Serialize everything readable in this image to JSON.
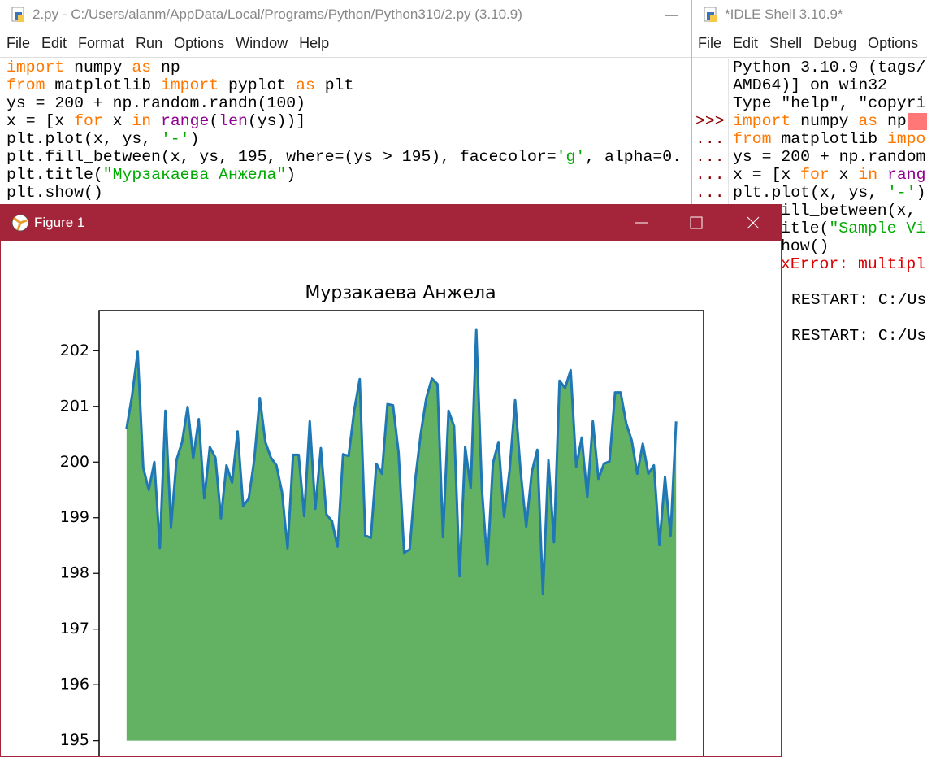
{
  "editor": {
    "title": "2.py - C:/Users/alanm/AppData/Local/Programs/Python/Python310/2.py (3.10.9)",
    "menu": [
      "File",
      "Edit",
      "Format",
      "Run",
      "Options",
      "Window",
      "Help"
    ],
    "code": [
      [
        {
          "text": "import",
          "kind": "keyword"
        },
        " numpy ",
        {
          "text": "as",
          "kind": "keyword"
        },
        " np"
      ],
      [
        {
          "text": "from",
          "kind": "keyword"
        },
        " matplotlib ",
        {
          "text": "import",
          "kind": "keyword"
        },
        " pyplot ",
        {
          "text": "as",
          "kind": "keyword"
        },
        " plt"
      ],
      [
        "ys = 200 + np.random.randn(100)"
      ],
      [
        "x = [x ",
        {
          "text": "for",
          "kind": "keyword"
        },
        " x ",
        {
          "text": "in",
          "kind": "keyword"
        },
        " ",
        {
          "text": "range",
          "kind": "builtin"
        },
        "(",
        {
          "text": "len",
          "kind": "builtin"
        },
        "(ys))]"
      ],
      [
        "plt.plot(x, ys, ",
        {
          "text": "'-'",
          "kind": "string"
        },
        ")"
      ],
      [
        "plt.fill_between(x, ys, 195, where=(ys > 195), facecolor=",
        {
          "text": "'g'",
          "kind": "string"
        },
        ", alpha=0."
      ],
      [
        "plt.title(",
        {
          "text": "\"Мурзакаева Анжела\"",
          "kind": "string"
        },
        ")"
      ],
      [
        "plt.show()"
      ]
    ]
  },
  "shell": {
    "title": "*IDLE Shell 3.10.9*",
    "menu": [
      "File",
      "Edit",
      "Shell",
      "Debug",
      "Options"
    ],
    "prompts": [
      ">>>",
      "...",
      "...",
      "...",
      "..."
    ],
    "lines": [
      [
        "Python 3.10.9 (tags/"
      ],
      [
        "AMD64)] on win32"
      ],
      [
        "Type \"help\", \"copyri"
      ],
      [
        {
          "text": "import",
          "kind": "keyword"
        },
        " numpy ",
        {
          "text": "as",
          "kind": "keyword"
        },
        " np"
      ],
      [
        {
          "text": "from",
          "kind": "keyword"
        },
        " matplotlib ",
        {
          "text": "impo",
          "kind": "keyword"
        }
      ],
      [
        "ys = 200 + np.random"
      ],
      [
        "x = [x ",
        {
          "text": "for",
          "kind": "keyword"
        },
        " x ",
        {
          "text": "in",
          "kind": "keyword"
        },
        " ",
        {
          "text": "rang",
          "kind": "builtin"
        }
      ],
      [
        "plt.plot(x, ys, ",
        {
          "text": "'-'",
          "kind": "string"
        },
        ")"
      ]
    ],
    "lines_behind_figure": [
      [
        "ill_between(x,"
      ],
      [
        "itle(",
        {
          "text": "\"Sample Vi",
          "kind": "string"
        }
      ],
      [
        "how()"
      ],
      [
        {
          "text": "xError: multipl",
          "kind": "error"
        }
      ],
      [
        "RESTART: C:/Us"
      ],
      [
        "RESTART: C:/Us"
      ]
    ]
  },
  "figure": {
    "title": "Figure 1"
  },
  "chart_data": {
    "type": "area_line",
    "title": "Мурзакаева Анжела",
    "x": [
      0,
      1,
      2,
      3,
      4,
      5,
      6,
      7,
      8,
      9,
      10,
      11,
      12,
      13,
      14,
      15,
      16,
      17,
      18,
      19,
      20,
      21,
      22,
      23,
      24,
      25,
      26,
      27,
      28,
      29,
      30,
      31,
      32,
      33,
      34,
      35,
      36,
      37,
      38,
      39,
      40,
      41,
      42,
      43,
      44,
      45,
      46,
      47,
      48,
      49,
      50,
      51,
      52,
      53,
      54,
      55,
      56,
      57,
      58,
      59,
      60,
      61,
      62,
      63,
      64,
      65,
      66,
      67,
      68,
      69,
      70,
      71,
      72,
      73,
      74,
      75,
      76,
      77,
      78,
      79,
      80,
      81,
      82,
      83,
      84,
      85,
      86,
      87,
      88,
      89,
      90,
      91,
      92,
      93,
      94,
      95,
      96,
      97,
      98,
      99
    ],
    "values": [
      200.6,
      201.2,
      201.98,
      199.9,
      199.5,
      200.0,
      198.46,
      200.92,
      198.83,
      200.04,
      200.36,
      200.99,
      200.07,
      200.77,
      199.35,
      200.27,
      200.08,
      198.99,
      199.94,
      199.63,
      200.55,
      199.21,
      199.34,
      200.04,
      201.15,
      200.36,
      200.08,
      199.94,
      199.46,
      198.45,
      200.13,
      200.13,
      199.03,
      200.73,
      199.16,
      200.25,
      199.06,
      198.94,
      198.48,
      200.14,
      200.11,
      200.92,
      201.49,
      198.68,
      198.64,
      199.97,
      199.79,
      201.04,
      201.02,
      200.17,
      198.37,
      198.43,
      199.68,
      200.51,
      201.15,
      201.5,
      201.4,
      198.65,
      200.92,
      200.64,
      197.95,
      200.27,
      199.53,
      202.37,
      199.53,
      198.16,
      199.98,
      200.36,
      199.02,
      199.85,
      201.11,
      199.82,
      198.84,
      199.82,
      200.22,
      197.63,
      200.03,
      198.56,
      201.46,
      201.33,
      201.65,
      199.92,
      200.44,
      199.37,
      200.73,
      199.7,
      199.97,
      200.01,
      201.25,
      201.25,
      200.7,
      200.39,
      199.79,
      200.33,
      199.79,
      199.94,
      198.52,
      199.73,
      198.68,
      200.73
    ],
    "fill_baseline": 195,
    "line_color": "#1f77b4",
    "fill_color": "#63b163",
    "xlim": [
      -4.95,
      103.95
    ],
    "ylim": [
      194.63,
      202.72
    ],
    "yticks": [
      195,
      196,
      197,
      198,
      199,
      200,
      201,
      202
    ],
    "grid": false
  }
}
